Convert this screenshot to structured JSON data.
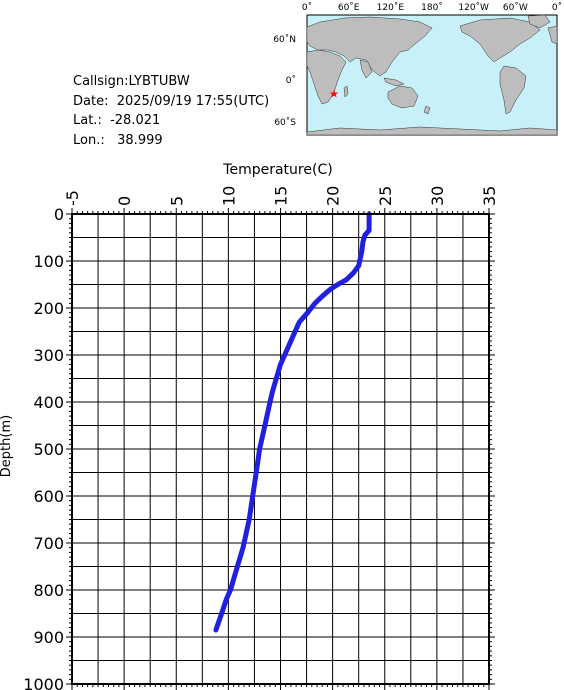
{
  "station": {
    "callsign_label": "Callsign:",
    "callsign": "LYBTUBW",
    "date_label": "Date:",
    "date": "2025/09/19 17:55(UTC)",
    "lat_label": "Lat.:",
    "lat": "-28.021",
    "lon_label": "Lon.:",
    "lon": "38.999"
  },
  "map": {
    "top_labels": [
      "0˚",
      "60˚E",
      "120˚E",
      "180˚",
      "120˚W",
      "60˚W",
      "0˚"
    ],
    "side_labels": [
      "60˚N",
      "0˚",
      "60˚S"
    ],
    "ocean_color": "#c8f0f8",
    "land_color": "#bdbdbd",
    "marker_color": "#ff0000"
  },
  "chart_data": {
    "type": "line",
    "xlabel": "Temperature(C)",
    "ylabel": "Depth(m)",
    "xlim": [
      -5,
      35
    ],
    "ylim": [
      1000,
      0
    ],
    "xticks": [
      "-5",
      "0",
      "5",
      "10",
      "15",
      "20",
      "25",
      "30",
      "35"
    ],
    "yticks": [
      "0",
      "100",
      "200",
      "300",
      "400",
      "500",
      "600",
      "700",
      "800",
      "900",
      "1000"
    ],
    "grid": true,
    "line_color": "#2020e0",
    "series": [
      {
        "x": [
          23.5,
          23.5,
          23.1,
          22.9,
          22.8,
          22.6,
          22.5,
          22.0,
          21.3,
          20.5,
          19.8,
          19.0,
          18.3,
          17.6,
          16.8,
          16.2,
          15.6,
          15.0,
          14.6,
          14.2,
          13.9,
          13.6,
          13.3,
          13.0,
          12.8,
          12.6,
          12.4,
          12.2,
          12.0,
          11.7,
          11.4,
          11.0,
          10.6,
          10.2,
          9.8,
          9.5,
          9.2,
          8.8
        ],
        "y": [
          0,
          35,
          45,
          60,
          80,
          100,
          110,
          125,
          140,
          150,
          160,
          175,
          190,
          210,
          230,
          260,
          290,
          320,
          350,
          380,
          410,
          440,
          470,
          500,
          530,
          560,
          590,
          620,
          650,
          680,
          710,
          740,
          770,
          800,
          820,
          840,
          860,
          885
        ]
      }
    ]
  }
}
